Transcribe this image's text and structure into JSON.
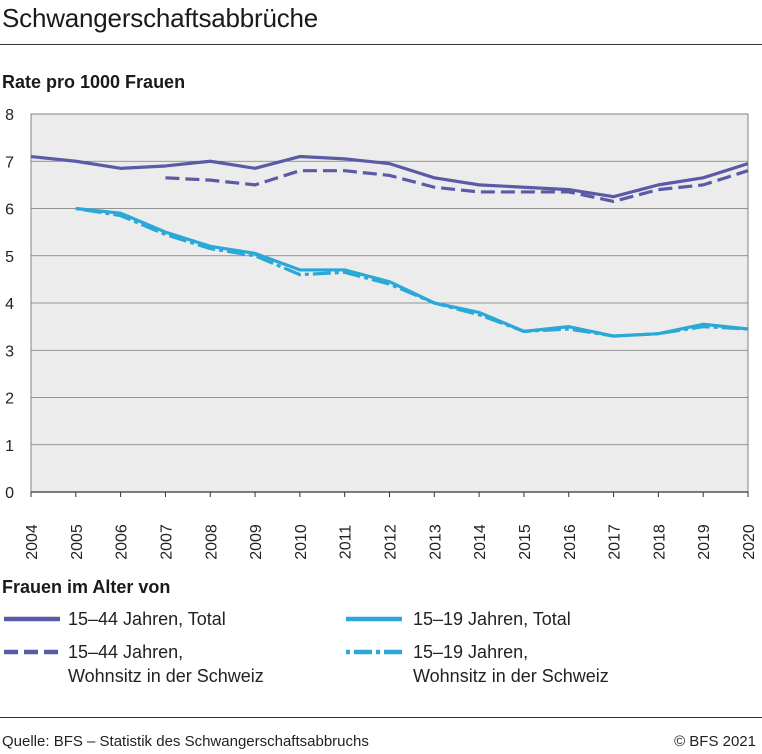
{
  "title": "Schwangerschaftsabbrüche",
  "chart_data": {
    "type": "line",
    "ylabel": "Rate pro 1000 Frauen",
    "xlabel": "",
    "x": [
      2004,
      2005,
      2006,
      2007,
      2008,
      2009,
      2010,
      2011,
      2012,
      2013,
      2014,
      2015,
      2016,
      2017,
      2018,
      2019,
      2020
    ],
    "x_tick_labels": [
      "2004",
      "2005",
      "2006",
      "2007",
      "2008",
      "2009",
      "2010",
      "2011",
      "2012",
      "2013",
      "2014",
      "2015",
      "2016",
      "2017",
      "2018",
      "2019",
      "2020"
    ],
    "ylim": [
      0,
      8
    ],
    "y_ticks": [
      0,
      1,
      2,
      3,
      4,
      5,
      6,
      7,
      8
    ],
    "y_tick_labels": [
      "0",
      "1",
      "2",
      "3",
      "4",
      "5",
      "6",
      "7",
      "8"
    ],
    "grid": true,
    "legend_title": "Frauen im Alter von",
    "series": [
      {
        "name": "15–44 Jahren, Total",
        "color": "#5a5aa6",
        "dash": "solid",
        "values": [
          7.1,
          7.0,
          6.85,
          6.9,
          7.0,
          6.85,
          7.1,
          7.05,
          6.95,
          6.65,
          6.5,
          6.45,
          6.4,
          6.25,
          6.5,
          6.65,
          6.95
        ]
      },
      {
        "name": "15–44 Jahren, Wohnsitz in der Schweiz",
        "legend_line1": "15–44 Jahren,",
        "legend_line2": "Wohnsitz in der Schweiz",
        "color": "#5a5aa6",
        "dash": "dashed",
        "values": [
          null,
          null,
          null,
          6.65,
          6.6,
          6.5,
          6.8,
          6.8,
          6.7,
          6.45,
          6.35,
          6.35,
          6.35,
          6.15,
          6.4,
          6.5,
          6.8
        ]
      },
      {
        "name": "15–19 Jahren, Total",
        "color": "#2aa8d8",
        "dash": "solid",
        "values": [
          null,
          6.0,
          5.9,
          5.5,
          5.2,
          5.05,
          4.7,
          4.7,
          4.45,
          4.0,
          3.8,
          3.4,
          3.5,
          3.3,
          3.35,
          3.55,
          3.45
        ]
      },
      {
        "name": "15–19 Jahren, Wohnsitz in der Schweiz",
        "legend_line1": "15–19 Jahren,",
        "legend_line2": "Wohnsitz in der Schweiz",
        "color": "#2aa8d8",
        "dash": "dashdot",
        "values": [
          null,
          6.0,
          5.85,
          5.45,
          5.15,
          5.0,
          4.6,
          4.65,
          4.4,
          4.0,
          3.75,
          3.4,
          3.45,
          3.3,
          3.35,
          3.5,
          3.45
        ]
      }
    ]
  },
  "footer": {
    "source": "Quelle: BFS – Statistik des Schwangerschaftsabbruchs",
    "copyright": "© BFS 2021"
  }
}
